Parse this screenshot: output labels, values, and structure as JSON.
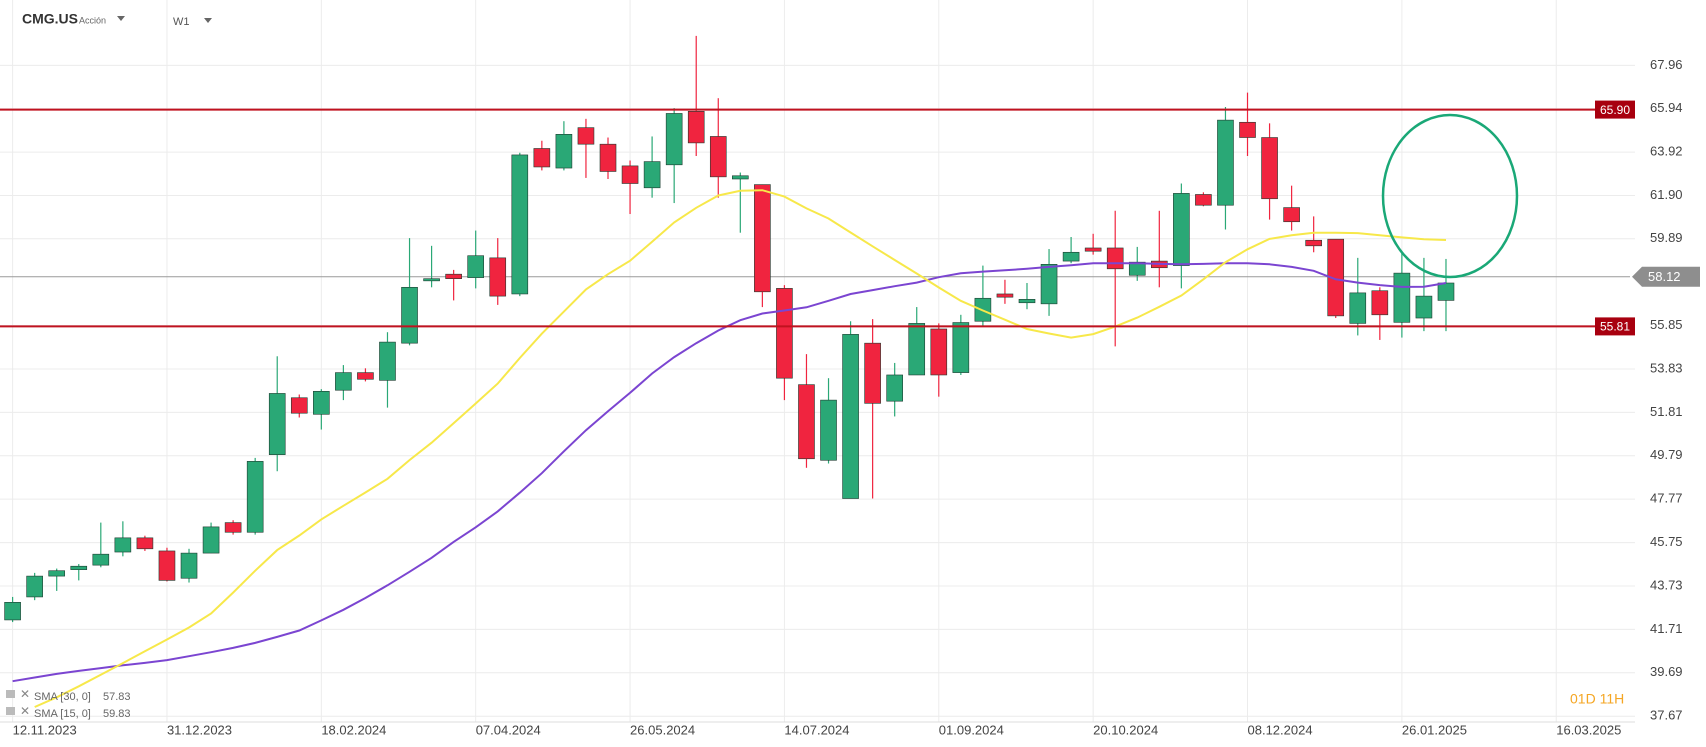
{
  "chart_data": {
    "type": "candlestick",
    "symbol": "CMG.US",
    "asset_type": "Acción",
    "timeframe": "W1",
    "countdown": "01D 11H",
    "x": [
      "12.11.2023",
      "19.11.2023",
      "26.11.2023",
      "03.12.2023",
      "10.12.2023",
      "17.12.2023",
      "24.12.2023",
      "31.12.2023",
      "07.01.2024",
      "14.01.2024",
      "21.01.2024",
      "28.01.2024",
      "04.02.2024",
      "11.02.2024",
      "18.02.2024",
      "25.02.2024",
      "03.03.2024",
      "10.03.2024",
      "17.03.2024",
      "24.03.2024",
      "31.03.2024",
      "07.04.2024",
      "14.04.2024",
      "21.04.2024",
      "28.04.2024",
      "05.05.2024",
      "12.05.2024",
      "19.05.2024",
      "26.05.2024",
      "02.06.2024",
      "09.06.2024",
      "16.06.2024",
      "23.06.2024",
      "30.06.2024",
      "07.07.2024",
      "14.07.2024",
      "21.07.2024",
      "28.07.2024",
      "04.08.2024",
      "11.08.2024",
      "18.08.2024",
      "25.08.2024",
      "01.09.2024",
      "08.09.2024",
      "15.09.2024",
      "22.09.2024",
      "29.09.2024",
      "06.10.2024",
      "13.10.2024",
      "20.10.2024",
      "27.10.2024",
      "03.11.2024",
      "10.11.2024",
      "17.11.2024",
      "24.11.2024",
      "01.12.2024",
      "08.12.2024",
      "15.12.2024",
      "22.12.2024",
      "29.12.2024",
      "05.01.2025",
      "12.01.2025",
      "19.01.2025",
      "26.01.2025",
      "02.02.2025",
      "09.02.2025"
    ],
    "open": [
      42.15,
      43.22,
      44.19,
      44.49,
      44.7,
      45.31,
      45.97,
      45.36,
      44.09,
      45.26,
      46.68,
      46.23,
      49.84,
      52.49,
      51.72,
      52.84,
      53.66,
      53.3,
      55.03,
      57.93,
      58.24,
      58.08,
      59.0,
      57.32,
      64.09,
      63.18,
      65.06,
      64.29,
      63.28,
      62.26,
      63.33,
      65.82,
      64.65,
      62.67,
      62.41,
      57.58,
      53.1,
      49.58,
      47.8,
      55.03,
      52.33,
      53.55,
      55.69,
      53.66,
      56.05,
      57.32,
      56.91,
      56.86,
      58.85,
      59.46,
      59.46,
      58.19,
      58.85,
      58.64,
      61.95,
      61.45,
      65.31,
      64.6,
      61.34,
      59.82,
      59.87,
      55.95,
      57.47,
      56.0,
      56.2,
      57.02
    ],
    "high": [
      43.22,
      44.34,
      44.54,
      44.75,
      46.68,
      46.74,
      46.07,
      45.51,
      45.46,
      46.68,
      46.79,
      49.69,
      54.42,
      52.64,
      52.89,
      54.01,
      53.86,
      55.54,
      59.92,
      59.56,
      58.44,
      60.27,
      59.92,
      63.89,
      64.45,
      65.36,
      65.47,
      64.6,
      63.53,
      64.65,
      65.97,
      69.33,
      66.43,
      62.97,
      62.41,
      57.73,
      54.52,
      53.4,
      56.05,
      56.15,
      54.11,
      56.71,
      55.95,
      56.35,
      58.64,
      57.98,
      57.83,
      59.41,
      59.97,
      60.12,
      61.19,
      59.51,
      61.19,
      62.46,
      62.05,
      66.02,
      66.69,
      65.26,
      62.36,
      60.93,
      59.87,
      59.0,
      57.63,
      59.31,
      59.0,
      58.95
    ],
    "low": [
      42.05,
      43.07,
      43.5,
      43.99,
      44.6,
      45.11,
      45.36,
      43.94,
      43.89,
      45.26,
      46.12,
      46.12,
      49.07,
      51.57,
      51.01,
      52.38,
      53.25,
      52.03,
      54.93,
      57.63,
      57.02,
      57.58,
      56.81,
      57.22,
      63.07,
      63.07,
      62.72,
      62.67,
      61.04,
      61.8,
      61.55,
      63.74,
      61.8,
      60.17,
      56.71,
      52.38,
      49.23,
      49.43,
      47.8,
      47.8,
      51.62,
      53.55,
      52.54,
      53.55,
      55.85,
      56.86,
      56.61,
      56.3,
      58.75,
      59.15,
      54.88,
      57.93,
      57.63,
      57.58,
      61.4,
      60.32,
      63.74,
      60.78,
      60.27,
      59.26,
      56.2,
      55.39,
      55.18,
      55.29,
      55.59,
      55.59
    ],
    "close": [
      42.97,
      44.19,
      44.44,
      44.65,
      45.21,
      45.97,
      45.46,
      43.99,
      45.26,
      46.48,
      46.23,
      49.53,
      52.69,
      51.77,
      52.79,
      53.66,
      53.35,
      55.08,
      57.63,
      58.03,
      58.03,
      59.1,
      57.22,
      63.79,
      63.23,
      64.75,
      64.29,
      63.02,
      62.46,
      63.48,
      65.72,
      64.35,
      62.77,
      62.82,
      57.42,
      53.4,
      49.65,
      52.38,
      55.44,
      52.23,
      53.55,
      55.95,
      53.55,
      55.99,
      57.12,
      57.17,
      57.07,
      58.7,
      59.26,
      59.31,
      58.49,
      58.8,
      58.54,
      62.0,
      61.45,
      65.41,
      64.6,
      61.75,
      60.68,
      59.56,
      56.3,
      57.37,
      56.35,
      58.29,
      57.22,
      57.83
    ],
    "up_color": "#2aa876",
    "down_color": "#f0243f",
    "series": [
      {
        "name": "SMA [30, 0]",
        "color": "#7b45d1",
        "values": [
          39.3,
          39.47,
          39.64,
          39.78,
          39.91,
          40.04,
          40.15,
          40.28,
          40.46,
          40.65,
          40.85,
          41.08,
          41.36,
          41.66,
          42.13,
          42.62,
          43.17,
          43.76,
          44.39,
          45.04,
          45.78,
          46.46,
          47.2,
          48.07,
          48.98,
          50.0,
          50.98,
          51.86,
          52.72,
          53.62,
          54.38,
          55.03,
          55.62,
          56.1,
          56.41,
          56.55,
          56.7,
          57.0,
          57.32,
          57.5,
          57.68,
          57.85,
          58.1,
          58.28,
          58.36,
          58.42,
          58.49,
          58.58,
          58.66,
          58.75,
          58.75,
          58.75,
          58.72,
          58.7,
          58.72,
          58.75,
          58.75,
          58.7,
          58.58,
          58.4,
          58.0,
          57.85,
          57.73,
          57.65,
          57.66,
          57.83
        ]
      },
      {
        "name": "SMA [15, 0]",
        "color": "#f7e84a",
        "values": [
          null,
          38.1,
          38.55,
          39.06,
          39.6,
          40.14,
          40.69,
          41.24,
          41.8,
          42.45,
          43.42,
          44.44,
          45.4,
          46.08,
          46.83,
          47.46,
          48.08,
          48.72,
          49.59,
          50.4,
          51.3,
          52.22,
          53.15,
          54.34,
          55.47,
          56.5,
          57.53,
          58.24,
          58.87,
          59.75,
          60.65,
          61.33,
          61.9,
          62.12,
          62.15,
          61.85,
          61.3,
          60.83,
          60.18,
          59.54,
          58.9,
          58.27,
          57.62,
          57.0,
          56.55,
          56.12,
          55.69,
          55.48,
          55.29,
          55.45,
          55.8,
          56.22,
          56.72,
          57.25,
          58.0,
          58.8,
          59.4,
          59.88,
          60.05,
          60.17,
          60.17,
          60.15,
          60.05,
          59.95,
          59.87,
          59.83
        ]
      }
    ],
    "hlines": [
      {
        "value": 65.9,
        "label": "65.90",
        "color": "#c0121f"
      },
      {
        "value": 55.81,
        "label": "55.81",
        "color": "#c0121f"
      }
    ],
    "last_price": 58.12,
    "xlim": [
      "08.11.2023",
      "10.04.2025"
    ],
    "xticks": [
      "12.11.2023",
      "31.12.2023",
      "18.02.2024",
      "07.04.2024",
      "26.05.2024",
      "14.07.2024",
      "01.09.2024",
      "20.10.2024",
      "08.12.2024",
      "26.01.2025",
      "16.03.2025"
    ],
    "ylim": [
      37.4,
      71.0
    ],
    "yticks": [
      67.96,
      65.94,
      63.92,
      {
        "value": 61.9,
        "label": "61.90"
      },
      59.89,
      55.85,
      53.83,
      51.81,
      49.79,
      47.77,
      45.75,
      43.73,
      41.71,
      39.69,
      37.67
    ],
    "grid": true
  }
}
